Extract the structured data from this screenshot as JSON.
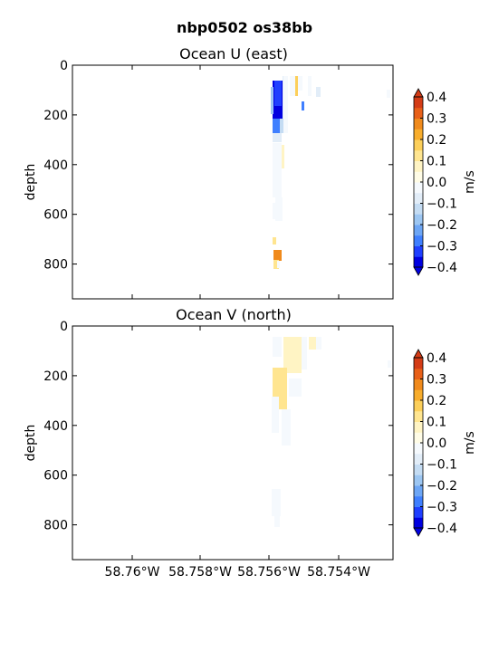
{
  "chart_data": {
    "suptitle": "nbp0502 os38bb",
    "panels": [
      {
        "type": "heatmap",
        "title": "Ocean U (east)",
        "ylabel": "depth",
        "xlabel": "",
        "ylim": [
          0,
          940
        ],
        "y_inverted": true,
        "yticks": [
          0,
          200,
          400,
          600,
          800
        ],
        "xticks": [
          "58.76°W",
          "58.758°W",
          "58.756°W",
          "58.754°W"
        ],
        "colorbar": {
          "label": "m/s",
          "levels": [
            -0.4,
            -0.35,
            -0.3,
            -0.25,
            -0.2,
            -0.15,
            -0.1,
            -0.05,
            0.0,
            0.05,
            0.1,
            0.15,
            0.2,
            0.25,
            0.3,
            0.35,
            0.4
          ],
          "tick_labels": [
            "0.4",
            "0.3",
            "0.2",
            "0.1",
            "0.0",
            "−0.1",
            "−0.2",
            "−0.3",
            "−0.4"
          ]
        },
        "features": [
          {
            "desc": "strong westward core",
            "depth_range": [
              70,
              250
            ],
            "value": -0.4
          },
          {
            "desc": "eastward patch",
            "depth_range": [
              280,
              345
            ],
            "value": 0.3
          },
          {
            "desc": "weak flow in shallow columns",
            "depth_range": [
              50,
              230
            ],
            "value": -0.1
          }
        ]
      },
      {
        "type": "heatmap",
        "title": "Ocean V (north)",
        "ylabel": "depth",
        "xlabel": "",
        "ylim": [
          0,
          940
        ],
        "y_inverted": true,
        "yticks": [
          0,
          200,
          400,
          600,
          800
        ],
        "xticks": [
          "58.76°W",
          "58.758°W",
          "58.756°W",
          "58.754°W"
        ],
        "colorbar": {
          "label": "m/s",
          "levels": [
            -0.4,
            -0.35,
            -0.3,
            -0.25,
            -0.2,
            -0.15,
            -0.1,
            -0.05,
            0.0,
            0.05,
            0.1,
            0.15,
            0.2,
            0.25,
            0.3,
            0.35,
            0.4
          ],
          "tick_labels": [
            "0.4",
            "0.3",
            "0.2",
            "0.1",
            "0.0",
            "−0.1",
            "−0.2",
            "−0.3",
            "−0.4"
          ]
        },
        "features": [
          {
            "desc": "weak northward core",
            "depth_range": [
              120,
              210
            ],
            "value": 0.15
          },
          {
            "desc": "weak northward surface band",
            "depth_range": [
              50,
              110
            ],
            "value": 0.05
          },
          {
            "desc": "weak southward margin",
            "depth_range": [
              60,
              345
            ],
            "value": -0.05
          }
        ]
      }
    ]
  },
  "colors": {
    "ramp": [
      "#0000e0",
      "#1f3fff",
      "#3f7fff",
      "#6da6f5",
      "#9cc6f2",
      "#c4dcf3",
      "#e2edf8",
      "#f5f9fd",
      "#fffce6",
      "#fff4c4",
      "#ffe590",
      "#fccf5a",
      "#f8ad2c",
      "#f08a1c",
      "#e86018",
      "#d43c16"
    ]
  }
}
